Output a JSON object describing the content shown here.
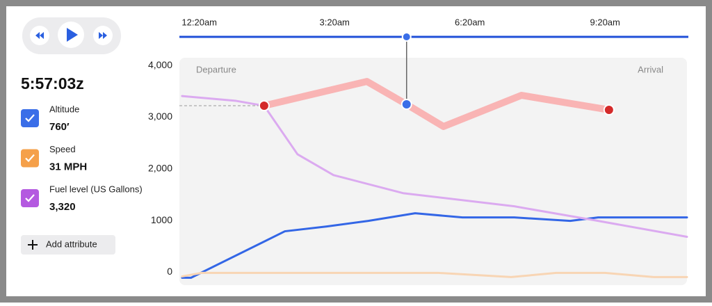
{
  "panel": {
    "time": "5:57:03z",
    "add_button": "Add attribute"
  },
  "chart_data": {
    "type": "line",
    "annotations": [
      "Departure",
      "Arrival"
    ],
    "xlim": [
      -0.11,
      11.15
    ],
    "xticks": [
      {
        "value": 0.333,
        "label": "12:20am"
      },
      {
        "value": 3.333,
        "label": "3:20am"
      },
      {
        "value": 6.333,
        "label": "6:20am"
      },
      {
        "value": 9.333,
        "label": "9:20am"
      }
    ],
    "ylim": [
      -250,
      4150
    ],
    "yticks": [
      0,
      1000,
      {
        "value": 2000,
        "label": "2,000"
      },
      {
        "value": 3000,
        "label": "3,000"
      },
      {
        "value": 4000,
        "label": "4,000"
      }
    ],
    "cursor_x": 4.93,
    "series": [
      {
        "name": "Altitude",
        "reading": "760′",
        "color": "#3a6ee8",
        "line_color": "#3366e6",
        "x": [
          -0.05,
          0.148,
          2.23,
          3.16,
          4.08,
          5.12,
          6.17,
          7.32,
          8.56,
          9.18,
          11.15
        ],
        "values": [
          -107,
          -107,
          792,
          886,
          993,
          1141,
          1060,
          1060,
          993,
          1060,
          1060
        ]
      },
      {
        "name": "Speed",
        "reading": "31 MPH",
        "color": "#f5a04a",
        "line_color": "#f8d5b4",
        "x": [
          -0.05,
          0.38,
          5.63,
          7.25,
          8.25,
          9.33,
          10.41,
          11.15
        ],
        "values": [
          -81,
          -13,
          -13,
          -94,
          -13,
          -13,
          -94,
          -94
        ]
      },
      {
        "name": "Fuel level (US Gallons)",
        "reading": "3,320",
        "color": "#b459e0",
        "line_color": "#dbaaf0",
        "x": [
          -0.05,
          1.15,
          1.77,
          2.51,
          3.31,
          4.85,
          7.32,
          9.18,
          11.15
        ],
        "values": [
          3409,
          3315,
          3221,
          2282,
          1879,
          1530,
          1275,
          993,
          685
        ]
      },
      {
        "color": "#d42a2a",
        "line_color": "#f9b4b4",
        "x": [
          1.77,
          4.05,
          4.93,
          5.75,
          7.48,
          9.42
        ],
        "values": [
          3221,
          3691,
          3248,
          2819,
          3423,
          3141
        ]
      }
    ]
  }
}
